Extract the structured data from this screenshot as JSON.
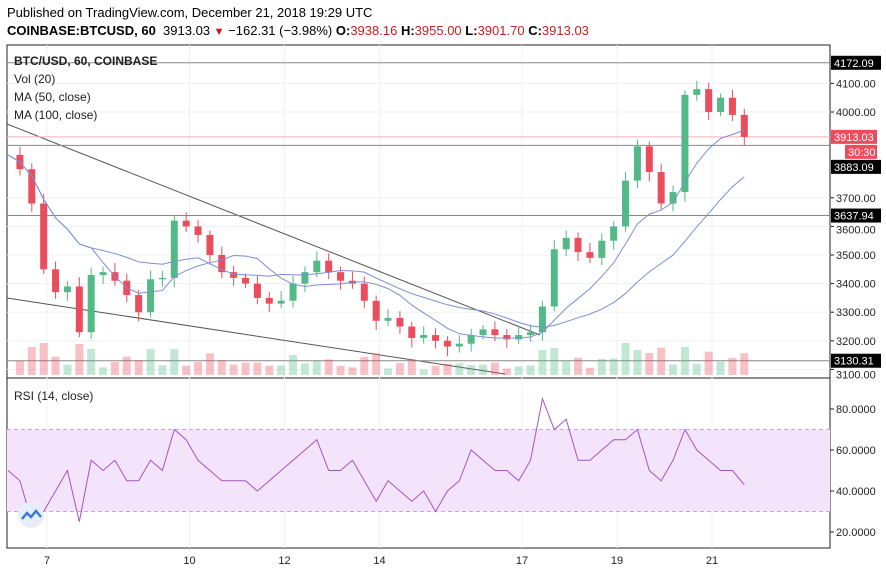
{
  "header": {
    "published": "Published on TradingView.com, December 21, 2018 19:29 UTC",
    "symbol": "COINBASE:BTCUSD, 60",
    "last": "3913.03",
    "change": "−162.31 (−3.98%)",
    "o_label": "O:",
    "o": "3938.16",
    "h_label": "H:",
    "h": "3955.00",
    "l_label": "L:",
    "l": "3901.70",
    "c_label": "C:",
    "c": "3913.03"
  },
  "legend": {
    "title": "BTC/USD, 60, COINBASE",
    "vol": "Vol (20)",
    "ma50": "MA (50, close)",
    "ma100": "MA (100, close)",
    "rsi": "RSI (14, close)"
  },
  "colors": {
    "up": "#53b987",
    "down": "#eb4d5c",
    "ma": "#7b8fd4",
    "rsi": "#a553c2",
    "rsi_band": "#f3e4fb"
  },
  "chart_data": [
    {
      "type": "candlestick",
      "title": "BTC/USD, 60, COINBASE",
      "interval_hours": 6,
      "start_day": 6.18,
      "closes": [
        3850,
        3800,
        3680,
        3450,
        3370,
        3390,
        3230,
        3430,
        3440,
        3410,
        3360,
        3300,
        3415,
        3420,
        3620,
        3600,
        3570,
        3500,
        3440,
        3420,
        3400,
        3350,
        3330,
        3340,
        3400,
        3440,
        3480,
        3440,
        3410,
        3400,
        3340,
        3270,
        3280,
        3250,
        3210,
        3220,
        3200,
        3180,
        3190,
        3220,
        3240,
        3220,
        3205,
        3220,
        3230,
        3320,
        3520,
        3560,
        3510,
        3490,
        3550,
        3600,
        3760,
        3880,
        3790,
        3680,
        3720,
        4060,
        4080,
        4000,
        4050,
        3990,
        3913
      ],
      "ylim": [
        3080,
        4210
      ],
      "y_ticks": [
        "4100.00",
        "4000.00",
        "3700.00",
        "3600.00",
        "3500.00",
        "3400.00",
        "3300.00",
        "3200.00",
        "3100.00"
      ],
      "y_tick_values": [
        4100,
        4000,
        3700,
        3600,
        3500,
        3400,
        3300,
        3200,
        3100
      ],
      "levels": [
        {
          "label": "4172.09",
          "value": 4172.09
        },
        {
          "label": "3883.09",
          "value": 3883.09
        },
        {
          "label": "3637.94",
          "value": 3637.94
        },
        {
          "label": "3130.31",
          "value": 3130.31
        }
      ],
      "last_price": {
        "label": "3913.03",
        "value": 3913.03,
        "countdown": "30:30"
      },
      "x_ticks": [
        "7",
        "10",
        "12",
        "14",
        "17",
        "19",
        "21"
      ],
      "x_tick_days": [
        7,
        10,
        12,
        14,
        17,
        19,
        21
      ]
    },
    {
      "type": "line",
      "title": "RSI (14, close)",
      "ylim": [
        10,
        95
      ],
      "values": [
        50,
        45,
        25,
        30,
        40,
        50,
        25,
        55,
        50,
        55,
        45,
        45,
        55,
        50,
        70,
        65,
        55,
        50,
        45,
        45,
        45,
        40,
        45,
        50,
        55,
        60,
        65,
        50,
        50,
        55,
        45,
        35,
        45,
        40,
        35,
        40,
        30,
        40,
        45,
        60,
        55,
        50,
        50,
        45,
        55,
        85,
        70,
        75,
        55,
        55,
        60,
        65,
        65,
        70,
        50,
        45,
        55,
        70,
        60,
        55,
        50,
        50,
        43
      ],
      "band": [
        30,
        70
      ],
      "y_ticks": [
        "80.0000",
        "60.0000",
        "40.0000",
        "20.0000"
      ],
      "y_tick_values": [
        80,
        60,
        40,
        20
      ]
    }
  ]
}
